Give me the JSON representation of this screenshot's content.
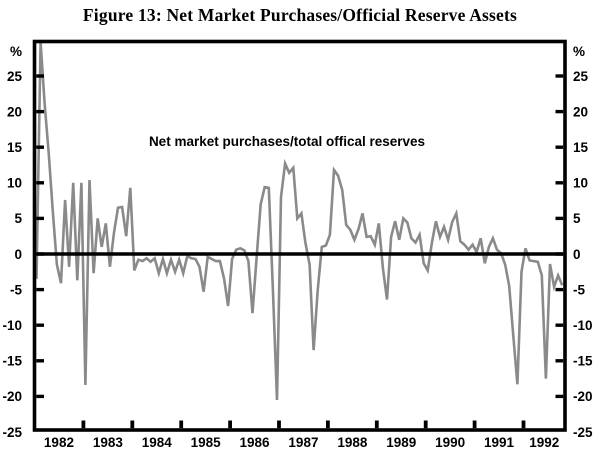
{
  "figure": {
    "title": "Figure 13: Net Market Purchases/Official Reserve Assets"
  },
  "chart_data": {
    "type": "line",
    "title": "Figure 13: Net Market Purchases/Official Reserve Assets",
    "annotation": "Net market purchases/total offical reserves",
    "y_axis_unit": "%",
    "xlabel": "",
    "ylabel": "%",
    "frequency": "monthly",
    "x_start": "1982-01",
    "x_end": "1992-10",
    "x_tick_years": [
      "1982",
      "1983",
      "1984",
      "1985",
      "1986",
      "1987",
      "1988",
      "1989",
      "1990",
      "1991",
      "1992"
    ],
    "y_tick_values": [
      25,
      20,
      15,
      10,
      5,
      0,
      -5,
      -10,
      -15,
      -20,
      -25
    ],
    "ylim": [
      -25,
      30
    ],
    "grid": false,
    "zero_line": true,
    "legend_position": "none",
    "line_color": "#8a8a8a",
    "axis_color": "#000000",
    "series": [
      {
        "name": "Net market purchases/total offical reserves",
        "values": [
          -3.5,
          29.7,
          21.0,
          14.0,
          6.0,
          -1.5,
          -4.1,
          7.6,
          -1.8,
          10.0,
          -3.7,
          10.0,
          -18.4,
          10.4,
          -2.7,
          5.0,
          1.0,
          4.3,
          -1.8,
          3.0,
          6.5,
          6.6,
          2.5,
          9.3,
          -2.3,
          -0.8,
          -1.0,
          -0.6,
          -1.1,
          -0.6,
          -2.7,
          -0.7,
          -2.7,
          -0.8,
          -2.5,
          -0.8,
          -2.7,
          -0.3,
          -0.6,
          -0.7,
          -1.8,
          -5.3,
          -0.4,
          -0.7,
          -1.0,
          -1.0,
          -3.4,
          -7.3,
          -0.7,
          0.6,
          0.8,
          0.5,
          -1.0,
          -8.3,
          -0.5,
          7.0,
          9.4,
          9.3,
          -5.0,
          -20.5,
          8.0,
          12.7,
          11.4,
          12.1,
          5.0,
          5.7,
          1.5,
          -1.5,
          -13.5,
          -5.1,
          1.0,
          1.2,
          2.7,
          11.8,
          11.0,
          9.0,
          4.1,
          3.4,
          2.0,
          3.5,
          5.7,
          2.4,
          2.5,
          1.3,
          4.3,
          -2.0,
          -6.4,
          2.4,
          4.6,
          2.0,
          5.0,
          4.4,
          2.2,
          1.6,
          2.7,
          -1.3,
          -2.3,
          1.5,
          4.6,
          2.4,
          3.8,
          2.0,
          4.5,
          5.7,
          1.8,
          1.3,
          0.6,
          1.3,
          0.3,
          2.2,
          -1.3,
          1.0,
          2.2,
          0.6,
          0.1,
          -1.5,
          -4.5,
          -11.5,
          -18.3,
          -2.5,
          0.8,
          -0.9,
          -1.0,
          -1.1,
          -3.0,
          -17.5,
          -1.4,
          -4.6,
          -3.0,
          -4.4
        ]
      }
    ]
  }
}
